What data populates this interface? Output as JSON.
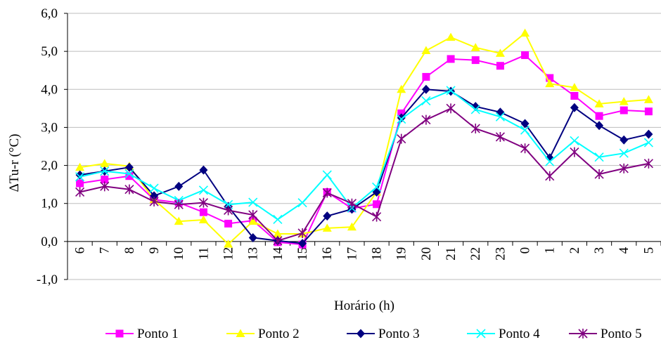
{
  "chart_data": {
    "type": "line",
    "xlabel": "Horário (h)",
    "ylabel": "ΔTu-r (°C)",
    "ylim": [
      -1.0,
      6.0
    ],
    "yticks": [
      "6,0",
      "5,0",
      "4,0",
      "3,0",
      "2,0",
      "1,0",
      "0,0",
      "-1,0"
    ],
    "categories": [
      "6",
      "7",
      "8",
      "9",
      "10",
      "11",
      "12",
      "13",
      "14",
      "15",
      "16",
      "17",
      "18",
      "19",
      "20",
      "21",
      "22",
      "23",
      "0",
      "1",
      "2",
      "3",
      "4",
      "5"
    ],
    "grid": true,
    "legend_position": "bottom",
    "series": [
      {
        "name": "Ponto 1",
        "color": "#ff00ff",
        "marker": "square",
        "values": [
          1.53,
          1.63,
          1.72,
          1.1,
          1.02,
          0.77,
          0.47,
          0.55,
          -0.02,
          -0.08,
          1.3,
          0.87,
          0.98,
          3.37,
          4.33,
          4.8,
          4.77,
          4.62,
          4.9,
          4.3,
          3.83,
          3.3,
          3.45,
          3.42
        ]
      },
      {
        "name": "Ponto 2",
        "color": "#ffff00",
        "marker": "triangle",
        "values": [
          1.95,
          2.05,
          1.98,
          1.1,
          0.53,
          0.57,
          -0.07,
          0.53,
          0.2,
          0.2,
          0.35,
          0.38,
          1.3,
          4.0,
          5.02,
          5.37,
          5.1,
          4.95,
          5.48,
          4.15,
          4.05,
          3.62,
          3.68,
          3.73
        ]
      },
      {
        "name": "Ponto 3",
        "color": "#000080",
        "marker": "diamond",
        "values": [
          1.75,
          1.85,
          1.95,
          1.2,
          1.45,
          1.88,
          0.92,
          0.1,
          0.02,
          -0.05,
          0.67,
          0.85,
          1.3,
          3.25,
          4.0,
          3.95,
          3.55,
          3.4,
          3.1,
          2.2,
          3.52,
          3.05,
          2.67,
          2.82
        ]
      },
      {
        "name": "Ponto 4",
        "color": "#00ffff",
        "marker": "x",
        "values": [
          1.7,
          1.85,
          1.78,
          1.4,
          1.08,
          1.35,
          0.97,
          1.03,
          0.58,
          1.02,
          1.75,
          0.88,
          1.43,
          3.22,
          3.7,
          3.97,
          3.47,
          3.28,
          2.93,
          2.1,
          2.65,
          2.22,
          2.32,
          2.6
        ]
      },
      {
        "name": "Ponto 5",
        "color": "#800080",
        "marker": "star",
        "values": [
          1.3,
          1.45,
          1.37,
          1.05,
          0.97,
          1.02,
          0.82,
          0.7,
          0.02,
          0.22,
          1.28,
          1.0,
          0.65,
          2.7,
          3.2,
          3.5,
          2.97,
          2.75,
          2.45,
          1.72,
          2.35,
          1.77,
          1.92,
          2.05
        ]
      }
    ]
  }
}
